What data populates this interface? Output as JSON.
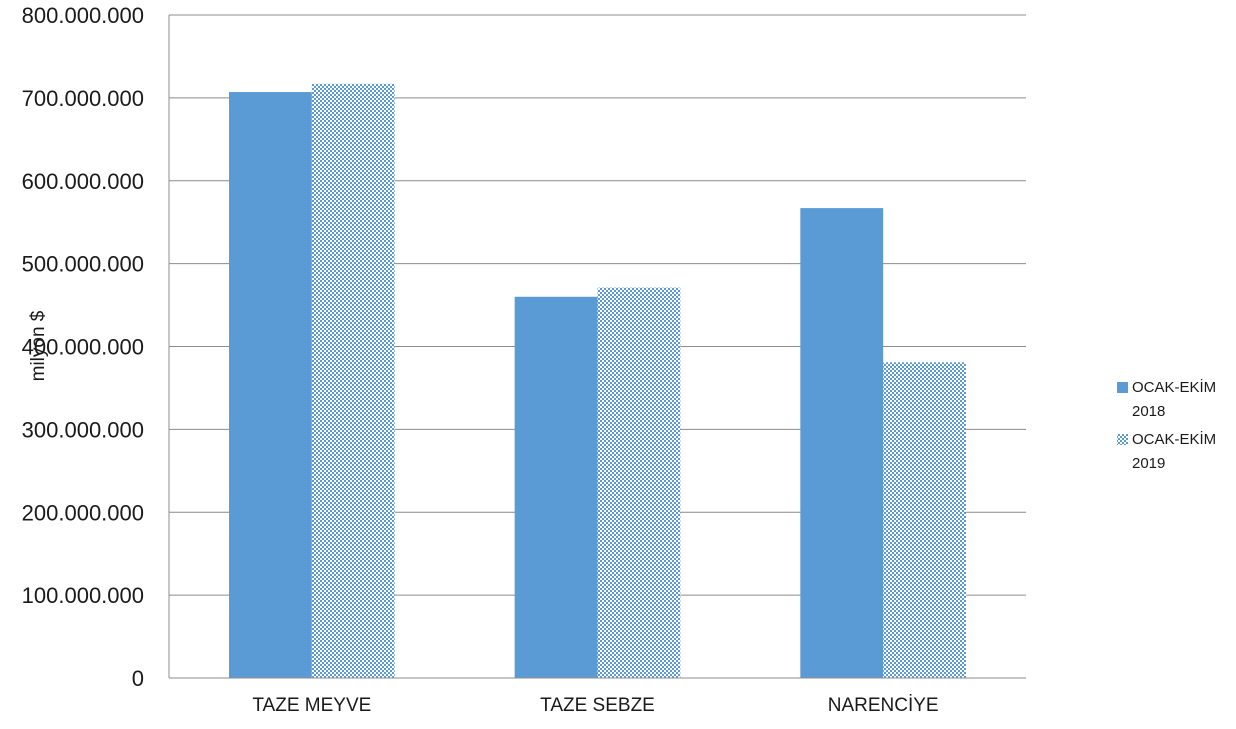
{
  "chart_data": {
    "type": "bar",
    "categories": [
      "TAZE MEYVE",
      "TAZE SEBZE",
      "NARENCİYE"
    ],
    "series": [
      {
        "name": "OCAK-EKİM 2018",
        "values": [
          707000000,
          460000000,
          567000000
        ],
        "color": "#5b9bd5",
        "pattern": "solid"
      },
      {
        "name": "OCAK-EKİM 2019",
        "values": [
          717000000,
          471000000,
          381000000
        ],
        "color": "#5b9bd5",
        "pattern": "dotted"
      }
    ],
    "y_ticks": [
      "0",
      "100.000.000",
      "200.000.000",
      "300.000.000",
      "400.000.000",
      "500.000.000",
      "600.000.000",
      "700.000.000",
      "800.000.000"
    ],
    "ylabel": "milyon $",
    "xlabel": "",
    "title": "",
    "ylim": [
      0,
      800000000
    ],
    "grid": true,
    "legend_position": "right",
    "legend_lines": [
      [
        "OCAK-EKİM",
        "2018"
      ],
      [
        "OCAK-EKİM",
        "2019"
      ]
    ]
  }
}
